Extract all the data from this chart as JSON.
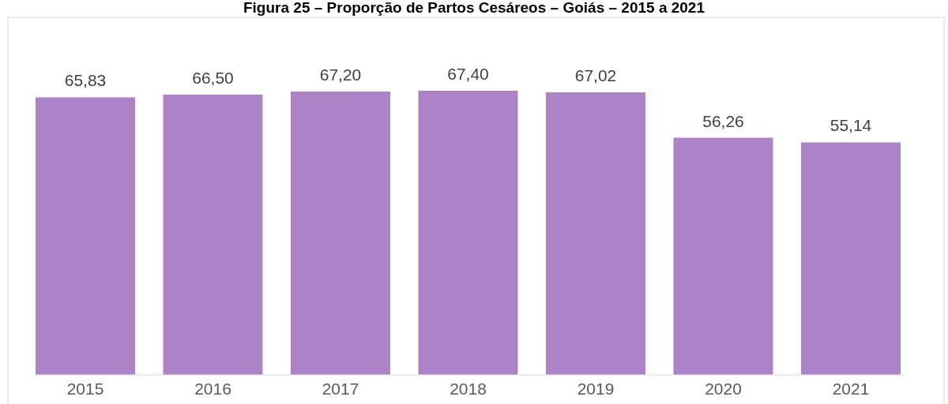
{
  "chart_data": {
    "type": "bar",
    "title": "Figura 25 – Proporção de Partos Cesáreos – Goiás – 2015 a 2021",
    "categories": [
      "2015",
      "2016",
      "2017",
      "2018",
      "2019",
      "2020",
      "2021"
    ],
    "values": [
      65.83,
      66.5,
      67.2,
      67.4,
      67.02,
      56.26,
      55.14
    ],
    "value_labels": [
      "65,83",
      "66,50",
      "67,20",
      "67,40",
      "67,02",
      "56,26",
      "55,14"
    ],
    "color": "#ab83c6"
  }
}
